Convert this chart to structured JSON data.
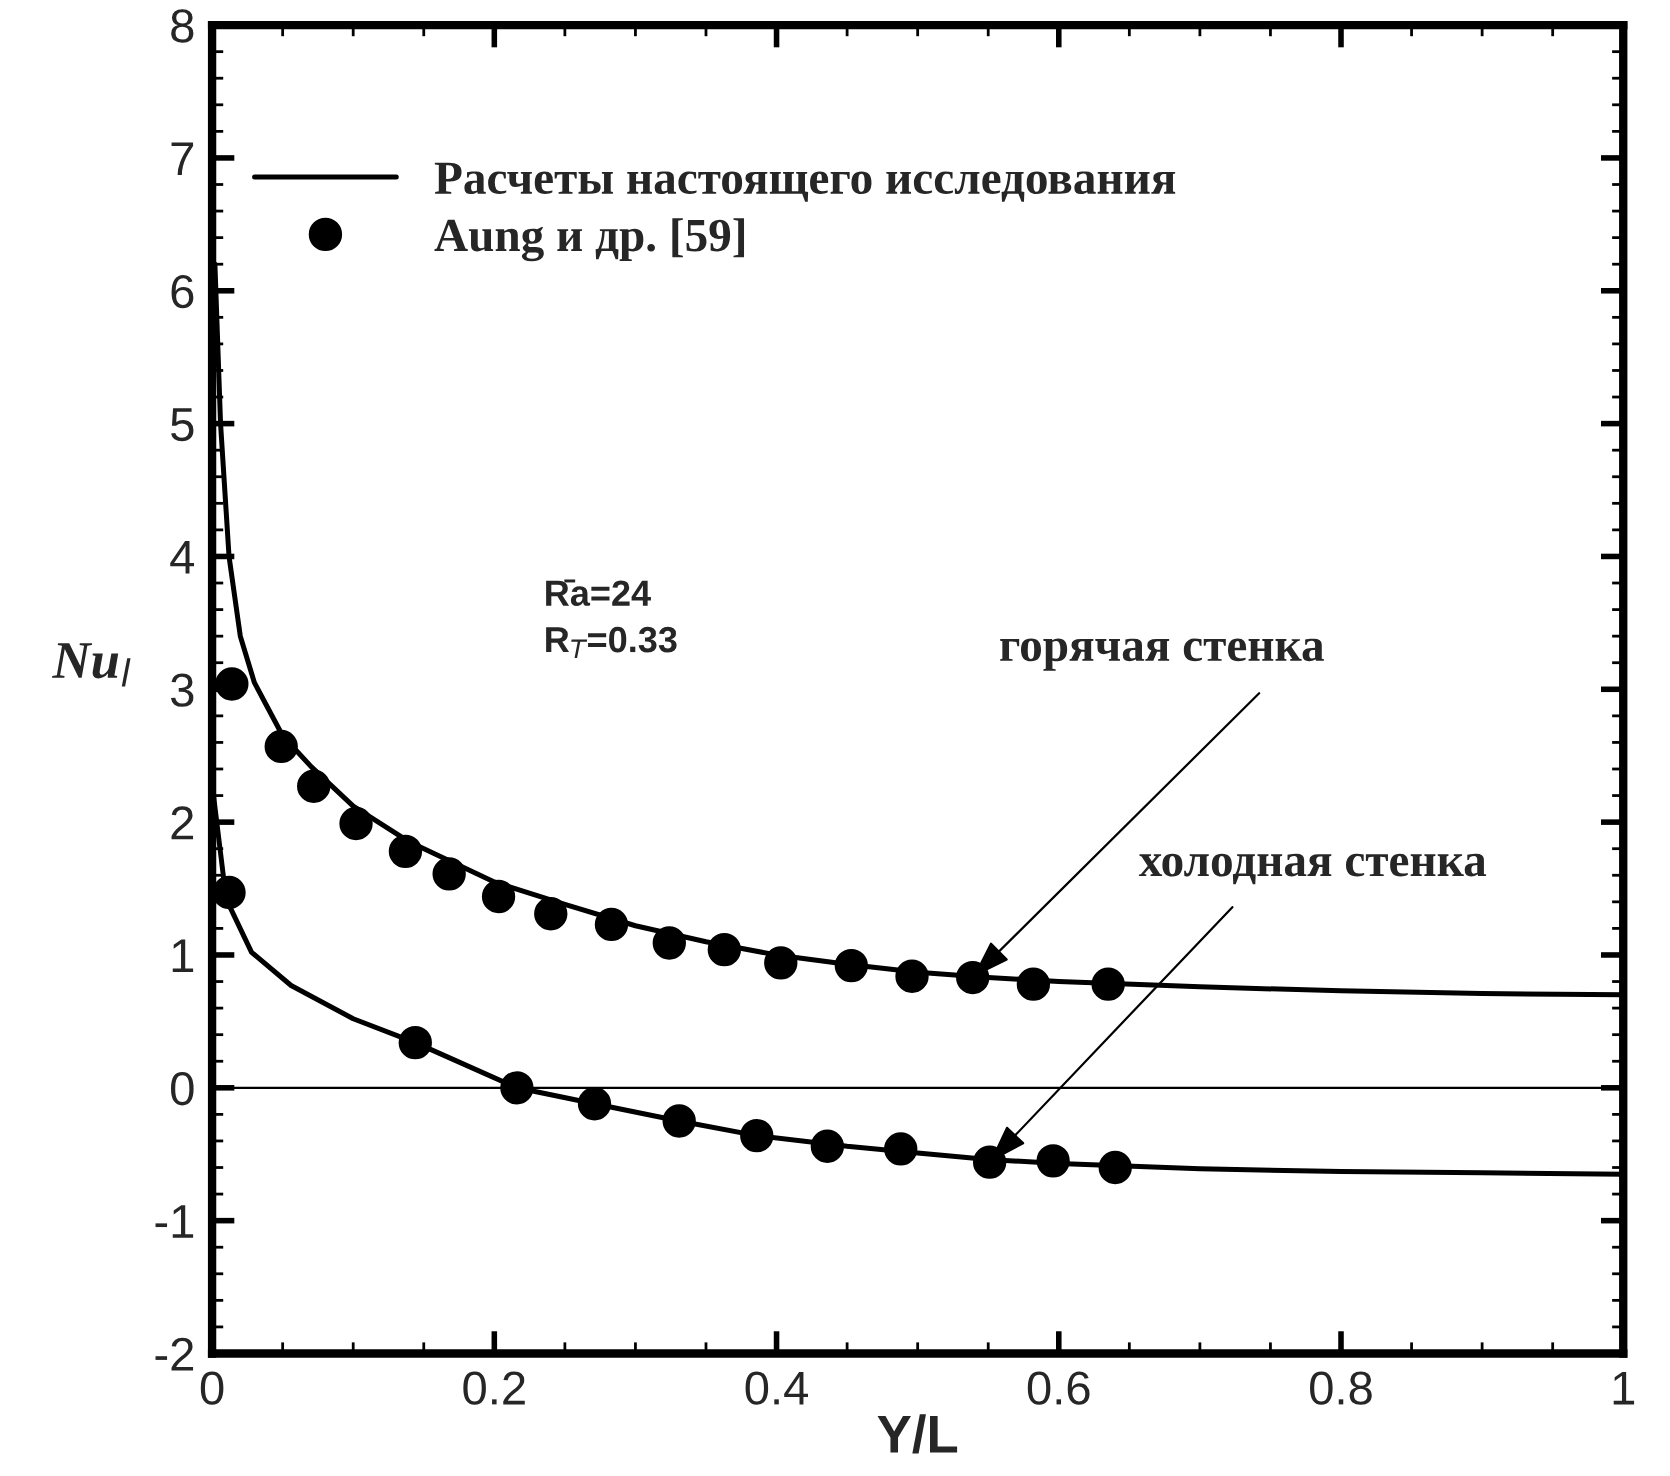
{
  "chart_data": {
    "type": "line",
    "xlabel": "Y/L",
    "ylabel": "Nu$_{l}$",
    "xlim": [
      0,
      1
    ],
    "ylim": [
      -2,
      8
    ],
    "xticks": [
      0,
      0.2,
      0.4,
      0.6,
      0.8,
      1
    ],
    "yticks": [
      -2,
      -1,
      0,
      1,
      2,
      3,
      4,
      5,
      6,
      7,
      8
    ],
    "grid": false,
    "legend": "top left",
    "series": [
      {
        "name": "Расчеты настоящего исследования",
        "color": "#000000",
        "marker": "none",
        "line_style": "solid",
        "x": [
          0.002,
          0.006,
          0.012,
          0.02,
          0.03,
          0.04,
          0.05,
          0.07,
          0.1,
          0.14,
          0.2,
          0.25,
          0.3,
          0.35,
          0.4,
          0.45,
          0.5,
          0.55,
          0.6,
          0.7,
          0.8,
          0.9,
          1.0
        ],
        "values": [
          6.2,
          5.0,
          4.0,
          3.4,
          3.05,
          2.85,
          2.65,
          2.42,
          2.12,
          1.85,
          1.55,
          1.38,
          1.22,
          1.1,
          1.0,
          0.93,
          0.87,
          0.83,
          0.8,
          0.76,
          0.73,
          0.71,
          0.7
        ]
      },
      {
        "color": "#000000",
        "marker": "none",
        "line_style": "solid",
        "x": [
          0.001,
          0.01,
          0.028,
          0.056,
          0.1,
          0.144,
          0.216,
          0.271,
          0.331,
          0.386,
          0.45,
          0.5,
          0.55,
          0.6,
          0.7,
          0.8,
          0.9,
          1.0
        ],
        "values": [
          2.2,
          1.42,
          1.02,
          0.77,
          0.52,
          0.34,
          0.0,
          -0.12,
          -0.25,
          -0.36,
          -0.44,
          -0.49,
          -0.54,
          -0.57,
          -0.61,
          -0.63,
          -0.64,
          -0.65
        ]
      },
      {
        "name": "Aung и др. [59]",
        "type": "scatter",
        "color": "#000000",
        "marker": "circle",
        "x": [
          0.014,
          0.049,
          0.072,
          0.102,
          0.137,
          0.168,
          0.203,
          0.24,
          0.283,
          0.324,
          0.363,
          0.403,
          0.453,
          0.496,
          0.539,
          0.582,
          0.635
        ],
        "values": [
          3.04,
          2.57,
          2.27,
          1.99,
          1.78,
          1.61,
          1.44,
          1.31,
          1.23,
          1.09,
          1.04,
          0.94,
          0.92,
          0.84,
          0.83,
          0.78,
          0.78
        ]
      },
      {
        "type": "scatter",
        "color": "#000000",
        "marker": "circle",
        "x": [
          0.012,
          0.144,
          0.216,
          0.271,
          0.331,
          0.386,
          0.436,
          0.488,
          0.551,
          0.596,
          0.64
        ],
        "values": [
          1.47,
          0.34,
          0.0,
          -0.12,
          -0.25,
          -0.36,
          -0.44,
          -0.46,
          -0.56,
          -0.55,
          -0.6
        ]
      }
    ],
    "ref_lines": [
      {
        "axis": "y",
        "value": 0,
        "color": "#000000"
      }
    ],
    "annotations": [
      "R̄a=24",
      "R$_{T}$=0.33",
      {
        "text": "горячая стенка",
        "x": 0.539,
        "y": 0.83
      },
      {
        "text": "холодная стенка",
        "x": 0.551,
        "y": -0.56
      }
    ]
  }
}
